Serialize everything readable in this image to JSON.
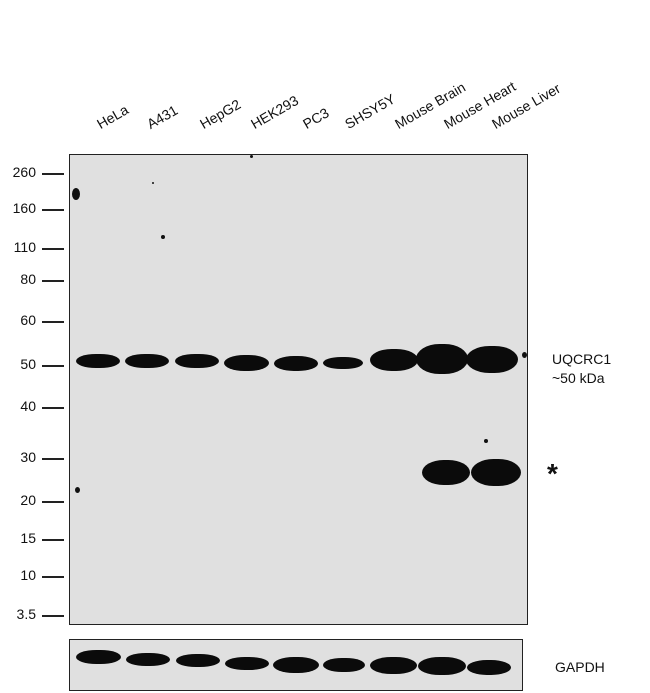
{
  "lanes": [
    "HeLa",
    "A431",
    "HepG2",
    "HEK293",
    "PC3",
    "SHSY5Y",
    "Mouse Brain",
    "Mouse Heart",
    "Mouse Liver"
  ],
  "mw_markers": [
    "260",
    "160",
    "110",
    "80",
    "60",
    "50",
    "40",
    "30",
    "20",
    "15",
    "10",
    "3.5"
  ],
  "main_blot": {
    "target_label": "UQCRC1",
    "size_label": "~50 kDa",
    "asterisk": "*"
  },
  "loading_control": {
    "label": "GAPDH"
  },
  "colors": {
    "membrane": "#e0e0e0",
    "band": "#0b0b0b",
    "border": "#222222"
  }
}
